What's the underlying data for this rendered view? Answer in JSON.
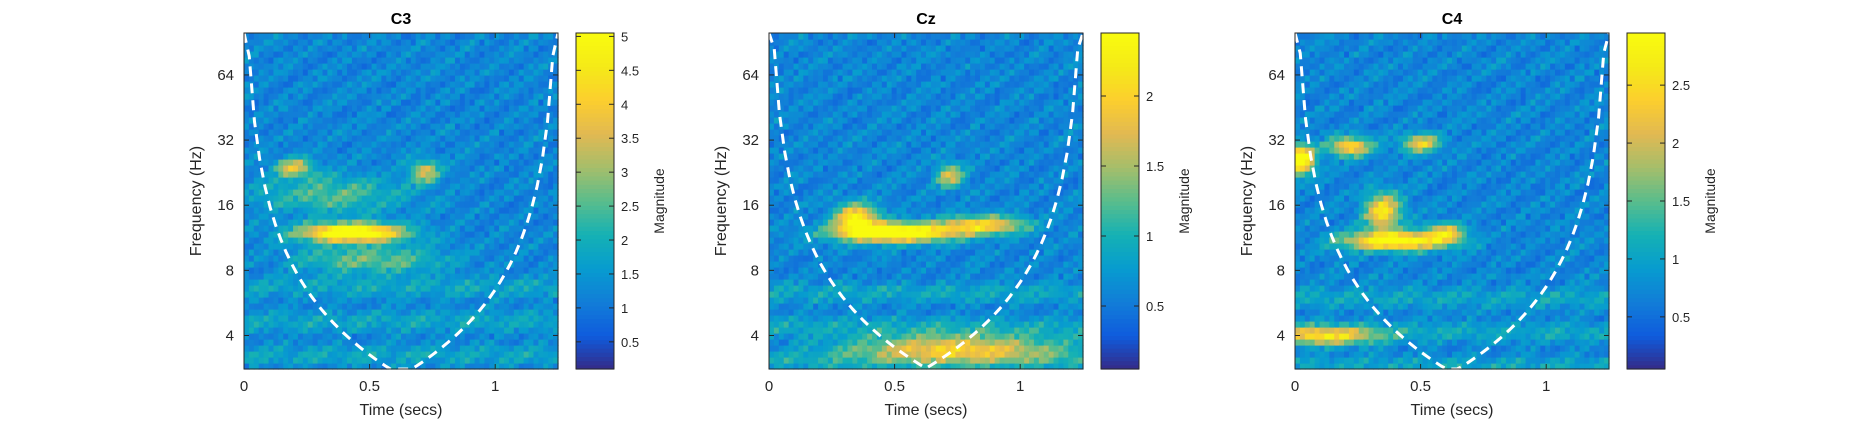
{
  "chart_data": [
    {
      "type": "heatmap",
      "title": "C3",
      "xlabel": "Time (secs)",
      "ylabel": "Frequency (Hz)",
      "xlim": [
        0,
        1.25
      ],
      "ylim": [
        2.8,
        100
      ],
      "yscale": "log2",
      "xticks": [
        0,
        0.5,
        1
      ],
      "xtick_labels": [
        "0",
        "0.5",
        "1"
      ],
      "yticks": [
        4,
        8,
        16,
        32,
        64
      ],
      "ytick_labels": [
        "4",
        "8",
        "16",
        "32",
        "64"
      ],
      "colorbar": {
        "label": "Magnitude",
        "range": [
          0.1,
          5.05
        ],
        "ticks": [
          0.5,
          1,
          1.5,
          2,
          2.5,
          3,
          3.5,
          4,
          4.5,
          5
        ],
        "tick_labels": [
          "0.5",
          "1",
          "1.5",
          "2",
          "2.5",
          "3",
          "3.5",
          "4",
          "4.5",
          "5"
        ]
      },
      "colormap": "parula",
      "cone_of_influence": {
        "style": "dashed",
        "color": "#ffffff",
        "apex_time": 0.6
      },
      "hotspots": [
        {
          "t": 0.43,
          "f": 12,
          "magnitude": 5.0,
          "time_spread": 0.14,
          "freq_spread_oct": 0.1
        },
        {
          "t": 0.2,
          "f": 24,
          "magnitude": 2.6,
          "time_spread": 0.05,
          "freq_spread_oct": 0.1
        },
        {
          "t": 0.72,
          "f": 23,
          "magnitude": 2.4,
          "time_spread": 0.04,
          "freq_spread_oct": 0.12
        },
        {
          "t": 0.5,
          "f": 9,
          "magnitude": 1.6,
          "time_spread": 0.2,
          "freq_spread_oct": 0.15
        },
        {
          "t": 0.35,
          "f": 18,
          "magnitude": 1.4,
          "time_spread": 0.2,
          "freq_spread_oct": 0.2
        }
      ]
    },
    {
      "type": "heatmap",
      "title": "Cz",
      "xlabel": "Time (secs)",
      "ylabel": "Frequency (Hz)",
      "xlim": [
        0,
        1.25
      ],
      "ylim": [
        2.8,
        100
      ],
      "yscale": "log2",
      "xticks": [
        0,
        0.5,
        1
      ],
      "xtick_labels": [
        "0",
        "0.5",
        "1"
      ],
      "yticks": [
        4,
        8,
        16,
        32,
        64
      ],
      "ytick_labels": [
        "4",
        "8",
        "16",
        "32",
        "64"
      ],
      "colorbar": {
        "label": "Magnitude",
        "range": [
          0.05,
          2.45
        ],
        "ticks": [
          0.5,
          1,
          1.5,
          2
        ],
        "tick_labels": [
          "0.5",
          "1",
          "1.5",
          "2"
        ]
      },
      "colormap": "parula",
      "cone_of_influence": {
        "style": "dashed",
        "color": "#ffffff",
        "apex_time": 0.65
      },
      "hotspots": [
        {
          "t": 0.5,
          "f": 12,
          "magnitude": 2.4,
          "time_spread": 0.16,
          "freq_spread_oct": 0.1
        },
        {
          "t": 0.35,
          "f": 14,
          "magnitude": 1.8,
          "time_spread": 0.06,
          "freq_spread_oct": 0.15
        },
        {
          "t": 0.85,
          "f": 13,
          "magnitude": 1.5,
          "time_spread": 0.12,
          "freq_spread_oct": 0.1
        },
        {
          "t": 0.72,
          "f": 22,
          "magnitude": 1.2,
          "time_spread": 0.04,
          "freq_spread_oct": 0.12
        },
        {
          "t": 0.75,
          "f": 3.5,
          "magnitude": 1.4,
          "time_spread": 0.3,
          "freq_spread_oct": 0.15
        }
      ]
    },
    {
      "type": "heatmap",
      "title": "C4",
      "xlabel": "Time (secs)",
      "ylabel": "Frequency (Hz)",
      "xlim": [
        0,
        1.25
      ],
      "ylim": [
        2.8,
        100
      ],
      "yscale": "log2",
      "xticks": [
        0,
        0.5,
        1
      ],
      "xtick_labels": [
        "0",
        "0.5",
        "1"
      ],
      "yticks": [
        4,
        8,
        16,
        32,
        64
      ],
      "ytick_labels": [
        "4",
        "8",
        "16",
        "32",
        "64"
      ],
      "colorbar": {
        "label": "Magnitude",
        "range": [
          0.05,
          2.95
        ],
        "ticks": [
          0.5,
          1,
          1.5,
          2,
          2.5
        ],
        "tick_labels": [
          "0.5",
          "1",
          "1.5",
          "2",
          "2.5"
        ]
      },
      "colormap": "parula",
      "cone_of_influence": {
        "style": "dashed",
        "color": "#ffffff",
        "apex_time": 0.62
      },
      "hotspots": [
        {
          "t": 0.02,
          "f": 26,
          "magnitude": 2.8,
          "time_spread": 0.04,
          "freq_spread_oct": 0.15
        },
        {
          "t": 0.4,
          "f": 11,
          "magnitude": 2.6,
          "time_spread": 0.14,
          "freq_spread_oct": 0.1
        },
        {
          "t": 0.35,
          "f": 15,
          "magnitude": 2.0,
          "time_spread": 0.05,
          "freq_spread_oct": 0.2
        },
        {
          "t": 0.22,
          "f": 30,
          "magnitude": 1.9,
          "time_spread": 0.06,
          "freq_spread_oct": 0.1
        },
        {
          "t": 0.5,
          "f": 31,
          "magnitude": 1.7,
          "time_spread": 0.05,
          "freq_spread_oct": 0.1
        },
        {
          "t": 0.12,
          "f": 4,
          "magnitude": 1.7,
          "time_spread": 0.14,
          "freq_spread_oct": 0.1
        },
        {
          "t": 0.6,
          "f": 12,
          "magnitude": 1.6,
          "time_spread": 0.05,
          "freq_spread_oct": 0.1
        }
      ]
    }
  ]
}
